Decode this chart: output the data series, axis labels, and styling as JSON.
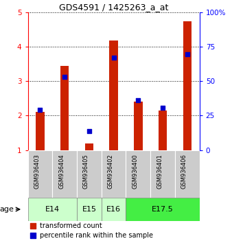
{
  "title": "GDS4591 / 1425263_a_at",
  "samples": [
    "GSM936403",
    "GSM936404",
    "GSM936405",
    "GSM936402",
    "GSM936400",
    "GSM936401",
    "GSM936406"
  ],
  "transformed_count": [
    2.1,
    3.45,
    1.2,
    4.17,
    2.4,
    2.15,
    4.73
  ],
  "percentile_rank": [
    2.17,
    3.12,
    1.55,
    3.68,
    2.45,
    2.22,
    3.78
  ],
  "ylim_left": [
    1,
    5
  ],
  "ylim_right": [
    0,
    100
  ],
  "yticks_left": [
    1,
    2,
    3,
    4,
    5
  ],
  "yticks_right": [
    0,
    25,
    50,
    75,
    100
  ],
  "yticklabels_right": [
    "0",
    "25",
    "50",
    "75",
    "100%"
  ],
  "bar_color": "#cc2200",
  "dot_color": "#0000cc",
  "age_groups": [
    {
      "label": "E14",
      "start": 0,
      "end": 2,
      "color": "#ccffcc"
    },
    {
      "label": "E15",
      "start": 2,
      "end": 3,
      "color": "#ccffcc"
    },
    {
      "label": "E16",
      "start": 3,
      "end": 4,
      "color": "#ccffcc"
    },
    {
      "label": "E17.5",
      "start": 4,
      "end": 7,
      "color": "#44ee44"
    }
  ],
  "legend_bar_label": "transformed count",
  "legend_dot_label": "percentile rank within the sample",
  "bar_width": 0.35,
  "dot_size": 25,
  "background_color": "#ffffff",
  "sample_box_color": "#cccccc",
  "title_fontsize": 9,
  "tick_fontsize": 7.5,
  "sample_fontsize": 6,
  "age_fontsize": 8,
  "legend_fontsize": 7
}
